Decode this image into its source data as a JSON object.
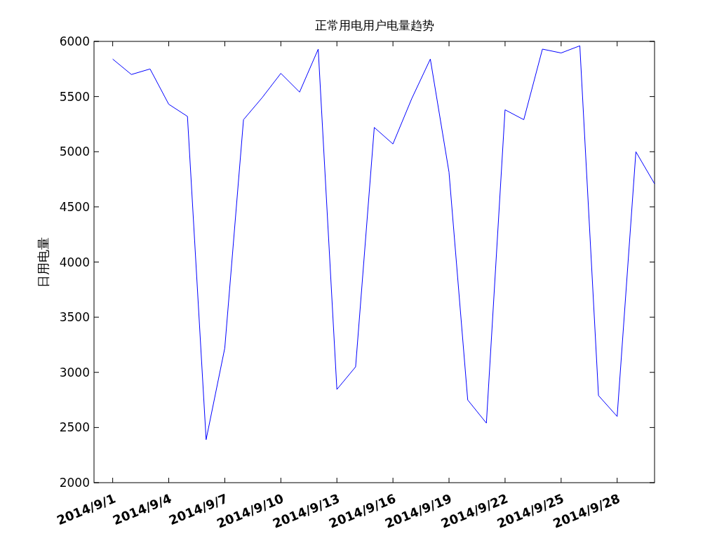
{
  "chart_data": {
    "type": "line",
    "title": "正常用电用户电量趋势",
    "ylabel": "日用电量",
    "x": [
      "2014-09-01",
      "2014-09-02",
      "2014-09-03",
      "2014-09-04",
      "2014-09-05",
      "2014-09-06",
      "2014-09-07",
      "2014-09-08",
      "2014-09-09",
      "2014-09-10",
      "2014-09-11",
      "2014-09-12",
      "2014-09-13",
      "2014-09-14",
      "2014-09-15",
      "2014-09-16",
      "2014-09-17",
      "2014-09-18",
      "2014-09-19",
      "2014-09-20",
      "2014-09-21",
      "2014-09-22",
      "2014-09-23",
      "2014-09-24",
      "2014-09-25",
      "2014-09-26",
      "2014-09-27",
      "2014-09-28",
      "2014-09-29",
      "2014-09-30"
    ],
    "series": [
      {
        "color": "#0000ff",
        "values": [
          5840,
          5700,
          5750,
          5430,
          5320,
          2390,
          3220,
          5290,
          5490,
          5710,
          5540,
          5930,
          2845,
          3050,
          5220,
          5070,
          5480,
          5840,
          4815,
          2750,
          2540,
          5380,
          5290,
          5930,
          5895,
          5960,
          2790,
          2600,
          5000,
          4710
        ]
      }
    ],
    "xlim": [
      "2014-08-31",
      "2014-09-30"
    ],
    "xticks": [
      {
        "value": "2014-09-01",
        "label": "2014/9/1"
      },
      {
        "value": "2014-09-04",
        "label": "2014/9/4"
      },
      {
        "value": "2014-09-07",
        "label": "2014/9/7"
      },
      {
        "value": "2014-09-10",
        "label": "2014/9/10"
      },
      {
        "value": "2014-09-13",
        "label": "2014/9/13"
      },
      {
        "value": "2014-09-16",
        "label": "2014/9/16"
      },
      {
        "value": "2014-09-19",
        "label": "2014/9/19"
      },
      {
        "value": "2014-09-22",
        "label": "2014/9/22"
      },
      {
        "value": "2014-09-25",
        "label": "2014/9/25"
      },
      {
        "value": "2014-09-28",
        "label": "2014/9/28"
      }
    ],
    "ylim": [
      2000,
      6000
    ],
    "yticks": [
      2000,
      2500,
      3000,
      3500,
      4000,
      4500,
      5000,
      5500,
      6000
    ],
    "line_style": "solid"
  }
}
